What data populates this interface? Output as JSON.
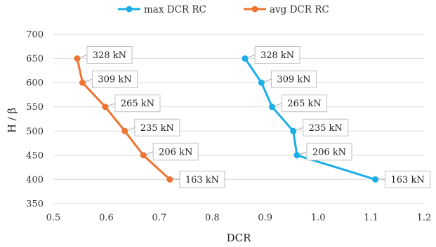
{
  "chart_data": {
    "type": "line",
    "title": "",
    "xlabel": "DCR",
    "ylabel": "H / β",
    "xlim": [
      0.5,
      1.2
    ],
    "ylim": [
      350,
      700
    ],
    "xticks": [
      "0.5",
      "0.6",
      "0.7",
      "0.8",
      "0.9",
      "1.0",
      "1.1",
      "1.2"
    ],
    "yticks": [
      "350",
      "400",
      "450",
      "500",
      "550",
      "600",
      "650",
      "700"
    ],
    "grid": "horizontal",
    "legend_position": "top",
    "series": [
      {
        "name": "max DCR RC",
        "color": "#1aaee8",
        "points": [
          {
            "x": 0.862,
            "y": 650,
            "label": "328 kN"
          },
          {
            "x": 0.893,
            "y": 600,
            "label": "309 kN"
          },
          {
            "x": 0.913,
            "y": 550,
            "label": "265 kN"
          },
          {
            "x": 0.953,
            "y": 500,
            "label": "235 kN"
          },
          {
            "x": 0.96,
            "y": 450,
            "label": "206 kN"
          },
          {
            "x": 1.108,
            "y": 400,
            "label": "163 kN"
          }
        ]
      },
      {
        "name": "avg DCR RC",
        "color": "#ed7431",
        "points": [
          {
            "x": 0.545,
            "y": 650,
            "label": "328 kN"
          },
          {
            "x": 0.555,
            "y": 600,
            "label": "309 kN"
          },
          {
            "x": 0.598,
            "y": 550,
            "label": "265 kN"
          },
          {
            "x": 0.635,
            "y": 500,
            "label": "235 kN"
          },
          {
            "x": 0.67,
            "y": 450,
            "label": "206 kN"
          },
          {
            "x": 0.72,
            "y": 400,
            "label": "163 kN"
          }
        ]
      }
    ]
  }
}
